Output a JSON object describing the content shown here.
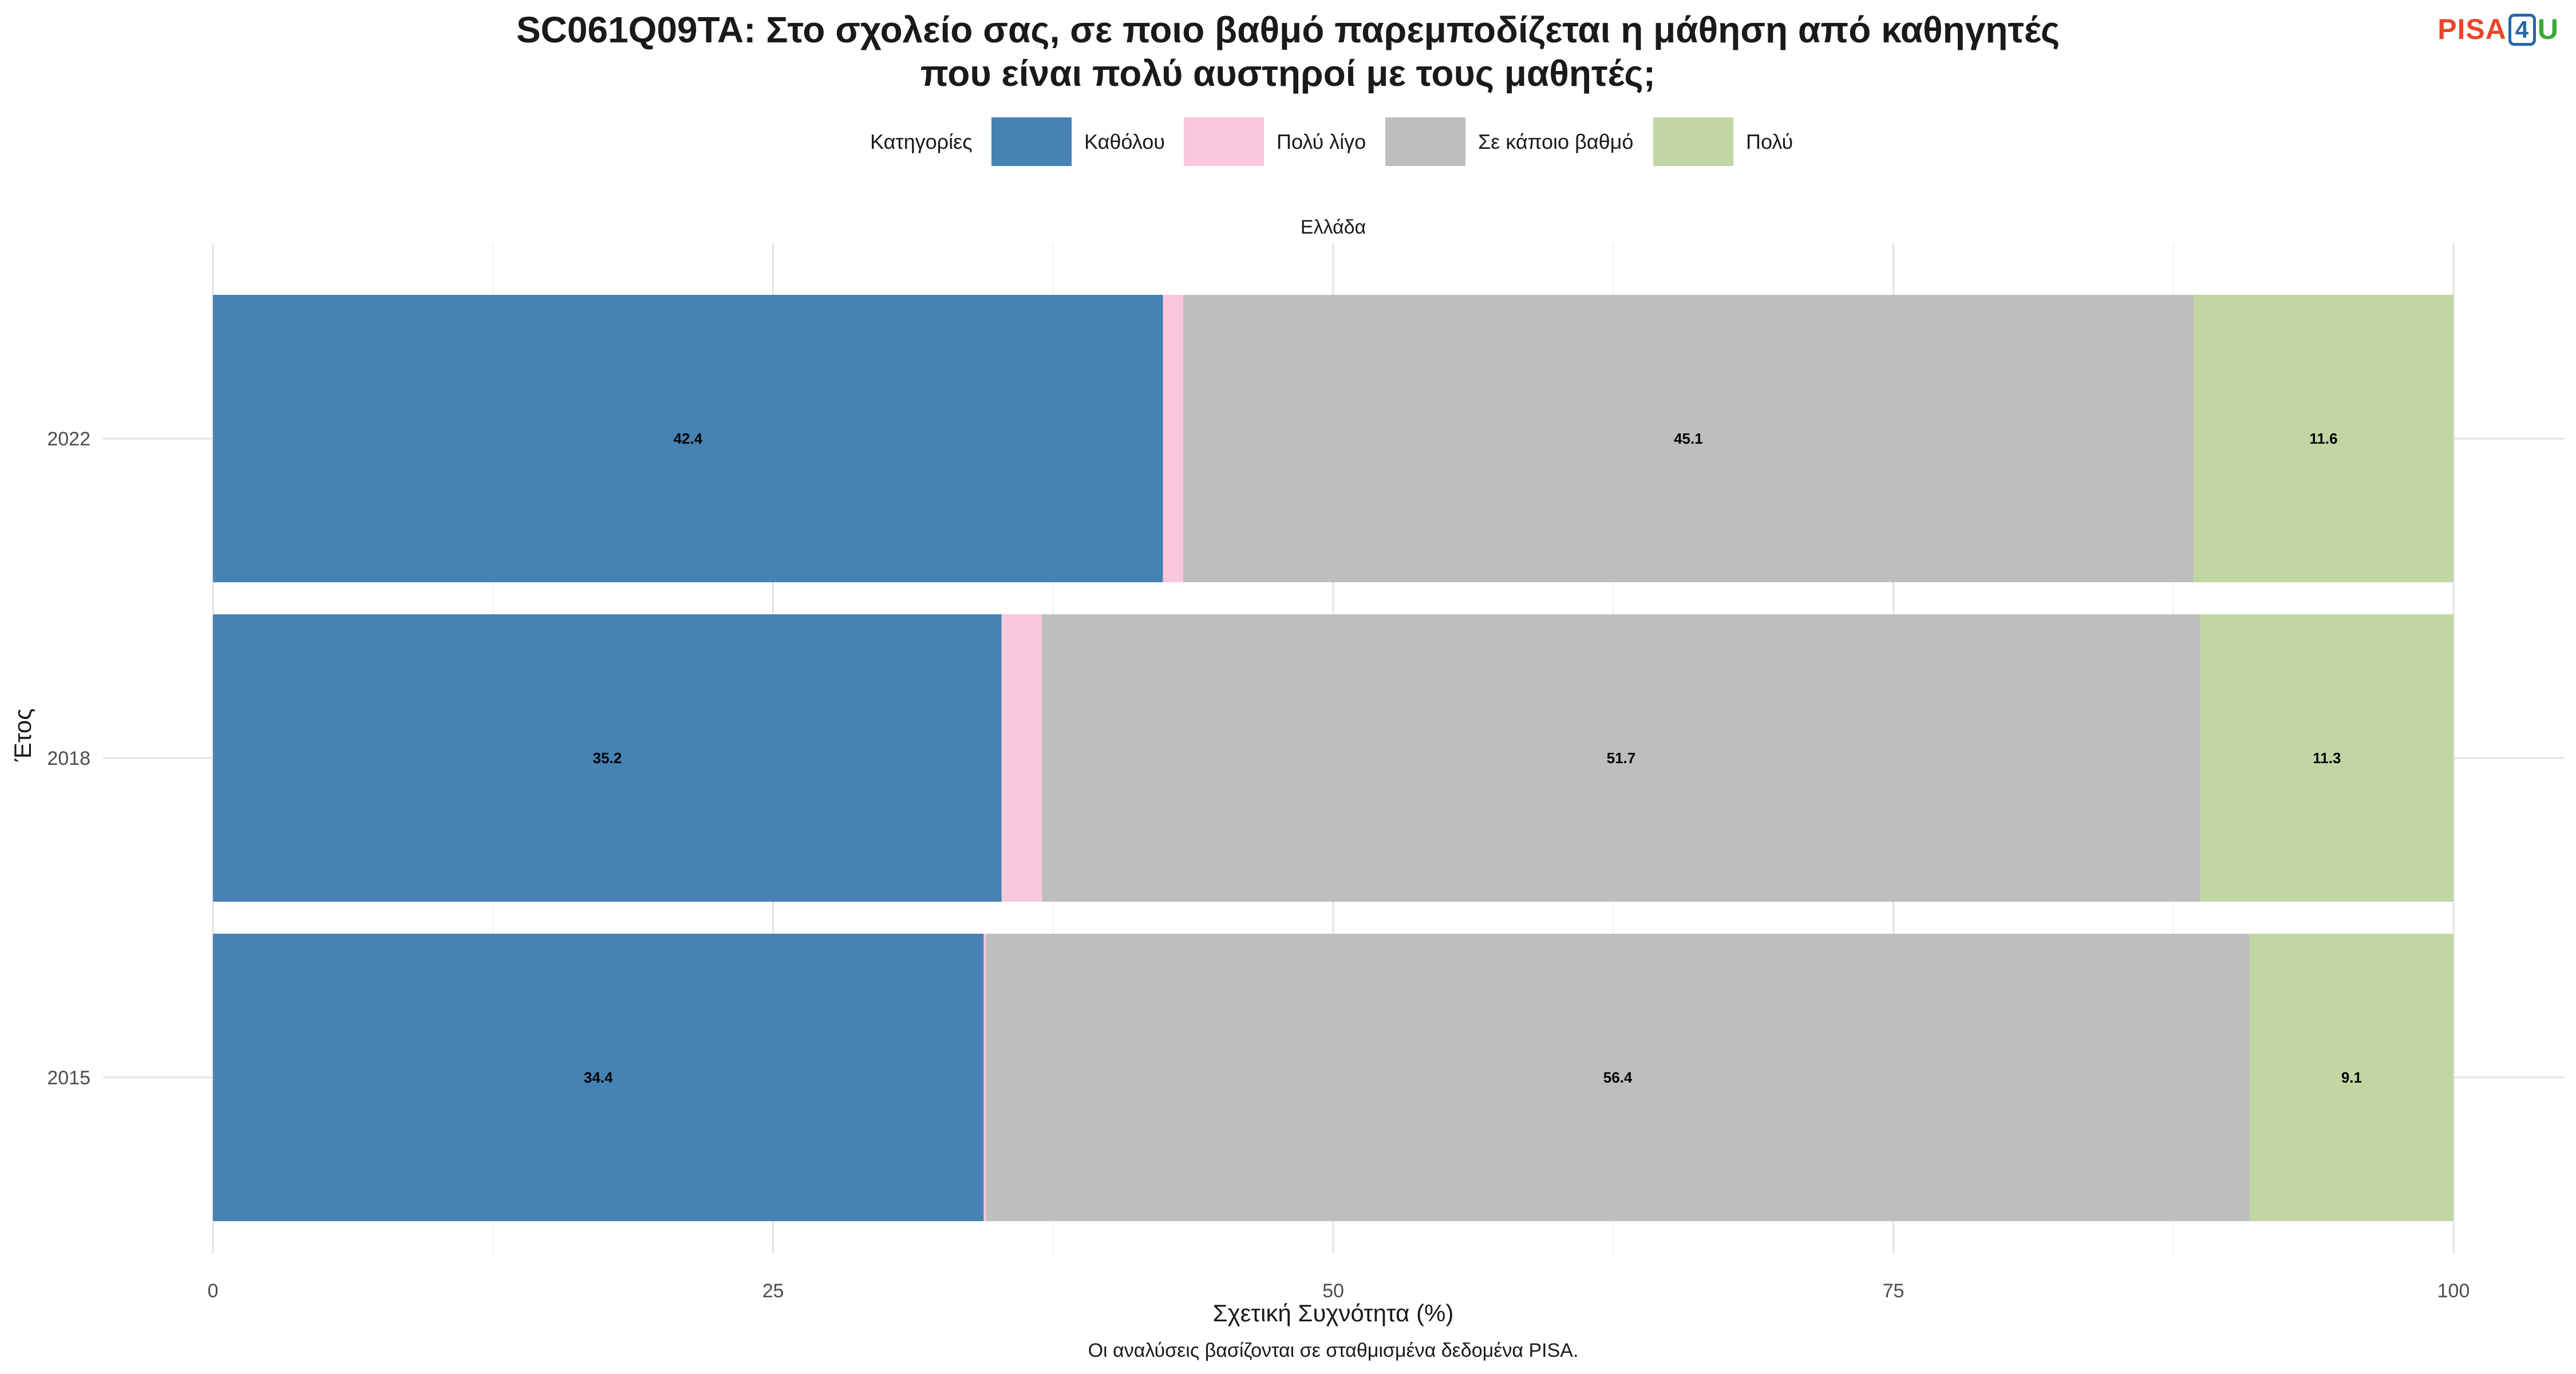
{
  "title_line1": "SC061Q09TA: Στο σχολείο σας, σε ποιο βαθμό παρεμποδίζεται η μάθηση από καθηγητές",
  "title_line2": "που είναι πολύ αυστηροί με τους μαθητές;",
  "logo": {
    "pisa": "PISA",
    "four": "4",
    "u": "U"
  },
  "legend": {
    "title": "Κατηγορίες",
    "items": [
      {
        "label": "Καθόλου",
        "color": "#4682b4"
      },
      {
        "label": "Πολύ λίγο",
        "color": "#f9c8dc"
      },
      {
        "label": "Σε κάποιο βαθμό",
        "color": "#bebebe"
      },
      {
        "label": "Πολύ",
        "color": "#c2d6a4"
      }
    ]
  },
  "facet_label": "Ελλάδα",
  "caption": "Οι αναλύσεις βασίζονται σε σταθμισμένα δεδομένα PISA.",
  "chart_data": {
    "type": "bar",
    "orientation": "horizontal",
    "stacked": true,
    "categories": [
      "2022",
      "2018",
      "2015"
    ],
    "series": [
      {
        "name": "Καθόλου",
        "values": [
          42.4,
          35.2,
          34.4
        ],
        "labels": [
          "42.4",
          "35.2",
          "34.4"
        ]
      },
      {
        "name": "Πολύ λίγο",
        "values": [
          0.9,
          1.8,
          0.1
        ],
        "labels": [
          "",
          "",
          ""
        ]
      },
      {
        "name": "Σε κάποιο βαθμό",
        "values": [
          45.1,
          51.7,
          56.4
        ],
        "labels": [
          "45.1",
          "51.7",
          "56.4"
        ]
      },
      {
        "name": "Πολύ",
        "values": [
          11.6,
          11.3,
          9.1
        ],
        "labels": [
          "11.6",
          "11.3",
          "9.1"
        ]
      }
    ],
    "xlabel": "Σχετική Συχνότητα (%)",
    "ylabel": "Έτος",
    "xlim": [
      0,
      100
    ],
    "xticks": [
      0,
      25,
      50,
      75,
      100
    ],
    "grid": true,
    "legend_position": "top"
  }
}
